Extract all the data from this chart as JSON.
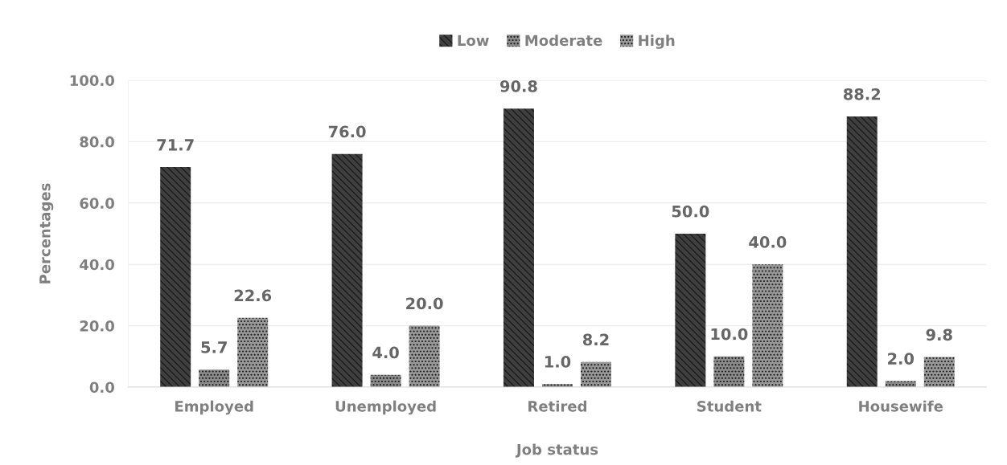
{
  "chart_data": {
    "type": "bar",
    "xlabel": "Job status",
    "ylabel": "Percentages",
    "categories": [
      "Employed",
      "Unemployed",
      "Retired",
      "Student",
      "Housewife"
    ],
    "series": [
      {
        "name": "Low",
        "color": "#3f3f3f",
        "values": [
          71.7,
          76.0,
          90.8,
          50.0,
          88.2
        ],
        "value_labels": [
          "71.7",
          "76.0",
          "90.8",
          "50.0",
          "88.2"
        ]
      },
      {
        "name": "Moderate",
        "color": "#8c8c8c",
        "values": [
          5.7,
          4.0,
          1.0,
          10.0,
          2.0
        ],
        "value_labels": [
          "5.7",
          "4.0",
          "1.0",
          "10.0",
          "2.0"
        ]
      },
      {
        "name": "High",
        "color": "#999999",
        "values": [
          22.6,
          20.0,
          8.2,
          40.0,
          9.8
        ],
        "value_labels": [
          "22.6",
          "20.0",
          "8.2",
          "40.0",
          "9.8"
        ]
      }
    ],
    "ylim": [
      0,
      100
    ],
    "yticks": [
      {
        "value": 0,
        "label": "0.0"
      },
      {
        "value": 20,
        "label": "20.0"
      },
      {
        "value": 40,
        "label": "40.0"
      },
      {
        "value": 60,
        "label": "60.0"
      },
      {
        "value": 80,
        "label": "80.0"
      },
      {
        "value": 100,
        "label": "100.0"
      }
    ],
    "grid": "y",
    "legend": "top"
  }
}
